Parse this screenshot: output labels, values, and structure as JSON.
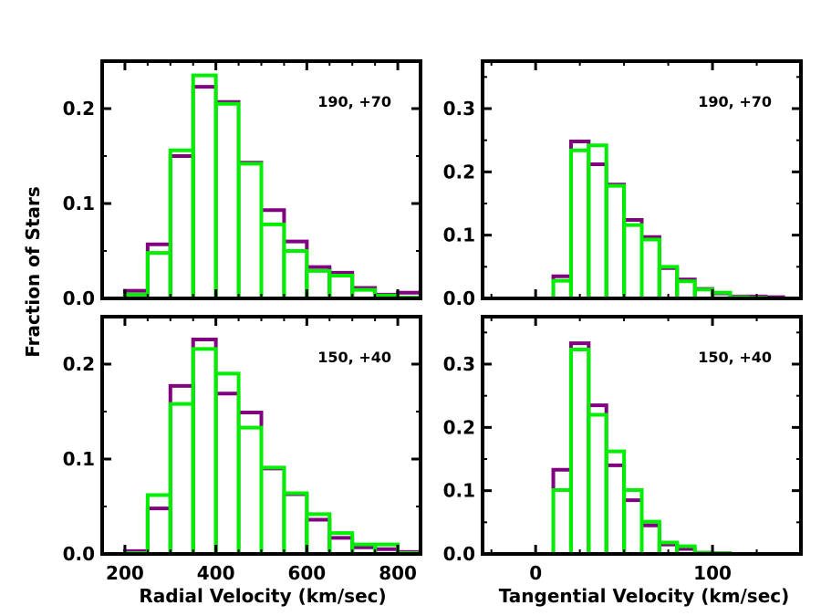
{
  "figure": {
    "ylabel": "Fraction of Stars",
    "xlabel_left": "Radial Velocity (km/sec)",
    "xlabel_right": "Tangential Velocity (km/sec)",
    "colors": {
      "series_a": "#800080",
      "series_b": "#00ee00",
      "frame": "#000000"
    }
  },
  "chart_data": [
    {
      "type": "histogram-step",
      "panel": "top-left",
      "label": "190, +70",
      "xlim": [
        150,
        850
      ],
      "ylim": [
        0,
        0.25
      ],
      "xticks": [],
      "xtick_labels": [],
      "yticks": [
        0,
        0.1,
        0.2
      ],
      "ytick_labels": [
        "0.0",
        "0.1",
        "0.2"
      ],
      "bin_edges": [
        200,
        250,
        300,
        350,
        400,
        450,
        500,
        550,
        600,
        650,
        700,
        750,
        800,
        850
      ],
      "series": [
        {
          "name": "purple",
          "color": "#800080",
          "values": [
            0.008,
            0.057,
            0.15,
            0.223,
            0.207,
            0.143,
            0.093,
            0.06,
            0.033,
            0.027,
            0.011,
            0.004,
            0.006
          ]
        },
        {
          "name": "green",
          "color": "#00ee00",
          "values": [
            0.004,
            0.048,
            0.156,
            0.235,
            0.205,
            0.142,
            0.078,
            0.05,
            0.029,
            0.024,
            0.009,
            0.003,
            0.001
          ]
        }
      ]
    },
    {
      "type": "histogram-step",
      "panel": "top-right",
      "label": "190, +70",
      "xlim": [
        -30,
        150
      ],
      "ylim": [
        0,
        0.375
      ],
      "xticks": [],
      "xtick_labels": [],
      "yticks": [
        0,
        0.1,
        0.2,
        0.3
      ],
      "ytick_labels": [
        "0.0",
        "0.1",
        "0.2",
        "0.3"
      ],
      "bin_edges": [
        10,
        20,
        30,
        40,
        50,
        60,
        70,
        80,
        90,
        100,
        110,
        120,
        130,
        140
      ],
      "series": [
        {
          "name": "purple",
          "color": "#800080",
          "values": [
            0.035,
            0.248,
            0.212,
            0.18,
            0.124,
            0.097,
            0.048,
            0.03,
            0.015,
            0.008,
            0.003,
            0.003,
            0.002
          ]
        },
        {
          "name": "green",
          "color": "#00ee00",
          "values": [
            0.028,
            0.234,
            0.242,
            0.178,
            0.116,
            0.093,
            0.05,
            0.027,
            0.014,
            0.009,
            0.002,
            0.001,
            0.0
          ]
        }
      ]
    },
    {
      "type": "histogram-step",
      "panel": "bottom-left",
      "label": "150, +40",
      "xlim": [
        150,
        850
      ],
      "ylim": [
        0,
        0.25
      ],
      "xticks": [
        200,
        400,
        600,
        800
      ],
      "xtick_labels": [
        "200",
        "400",
        "600",
        "800"
      ],
      "yticks": [
        0,
        0.1,
        0.2
      ],
      "ytick_labels": [
        "0.0",
        "0.1",
        "0.2"
      ],
      "bin_edges": [
        200,
        250,
        300,
        350,
        400,
        450,
        500,
        550,
        600,
        650,
        700,
        750,
        800,
        850
      ],
      "series": [
        {
          "name": "purple",
          "color": "#800080",
          "values": [
            0.003,
            0.048,
            0.177,
            0.226,
            0.169,
            0.149,
            0.09,
            0.063,
            0.036,
            0.017,
            0.007,
            0.005,
            0.002
          ]
        },
        {
          "name": "green",
          "color": "#00ee00",
          "values": [
            0.001,
            0.062,
            0.158,
            0.216,
            0.19,
            0.133,
            0.091,
            0.064,
            0.042,
            0.022,
            0.01,
            0.01,
            0.001
          ]
        }
      ]
    },
    {
      "type": "histogram-step",
      "panel": "bottom-right",
      "label": "150, +40",
      "xlim": [
        -30,
        150
      ],
      "ylim": [
        0,
        0.375
      ],
      "xticks": [
        0,
        100
      ],
      "xtick_labels": [
        "0",
        "100"
      ],
      "yticks": [
        0,
        0.1,
        0.2,
        0.3
      ],
      "ytick_labels": [
        "0.0",
        "0.1",
        "0.2",
        "0.3"
      ],
      "bin_edges": [
        10,
        20,
        30,
        40,
        50,
        60,
        70,
        80,
        90,
        100,
        110
      ],
      "series": [
        {
          "name": "purple",
          "color": "#800080",
          "values": [
            0.133,
            0.333,
            0.235,
            0.14,
            0.085,
            0.045,
            0.015,
            0.008,
            0.002,
            0.001
          ]
        },
        {
          "name": "green",
          "color": "#00ee00",
          "values": [
            0.101,
            0.323,
            0.22,
            0.162,
            0.101,
            0.051,
            0.018,
            0.012,
            0.002,
            0.001
          ]
        }
      ]
    }
  ]
}
